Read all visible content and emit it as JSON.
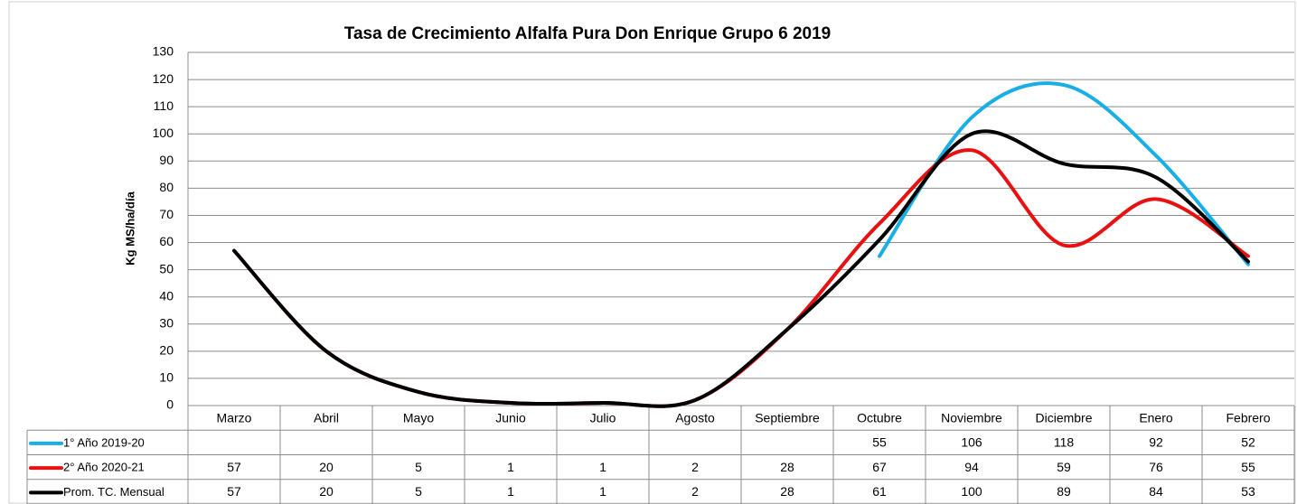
{
  "chart_data": {
    "type": "line",
    "title": "Tasa de Crecimiento Alfalfa Pura Don Enrique Grupo 6 2019",
    "y_label": "Kg MS/ha/día",
    "categories": [
      "Marzo",
      "Abril",
      "Mayo",
      "Junio",
      "Julio",
      "Agosto",
      "Septiembre",
      "Octubre",
      "Noviembre",
      "Diciembre",
      "Enero",
      "Febrero"
    ],
    "series": [
      {
        "name": "1° Año 2019-20",
        "color": "#1aaee6",
        "values": [
          null,
          null,
          null,
          null,
          null,
          null,
          null,
          55,
          106,
          118,
          92,
          52
        ]
      },
      {
        "name": "2° Año 2020-21",
        "color": "#e81010",
        "values": [
          57,
          20,
          5,
          1,
          1,
          2,
          28,
          67,
          94,
          59,
          76,
          55
        ]
      },
      {
        "name": "Prom. TC. Mensual",
        "color": "#000000",
        "values": [
          57,
          20,
          5,
          1,
          1,
          2,
          28,
          61,
          100,
          89,
          84,
          53
        ]
      }
    ],
    "ylim": [
      0,
      130
    ],
    "yticks": [
      0,
      10,
      20,
      30,
      40,
      50,
      60,
      70,
      80,
      90,
      100,
      110,
      120,
      130
    ],
    "grid": true,
    "smooth": true,
    "data_table": true
  }
}
